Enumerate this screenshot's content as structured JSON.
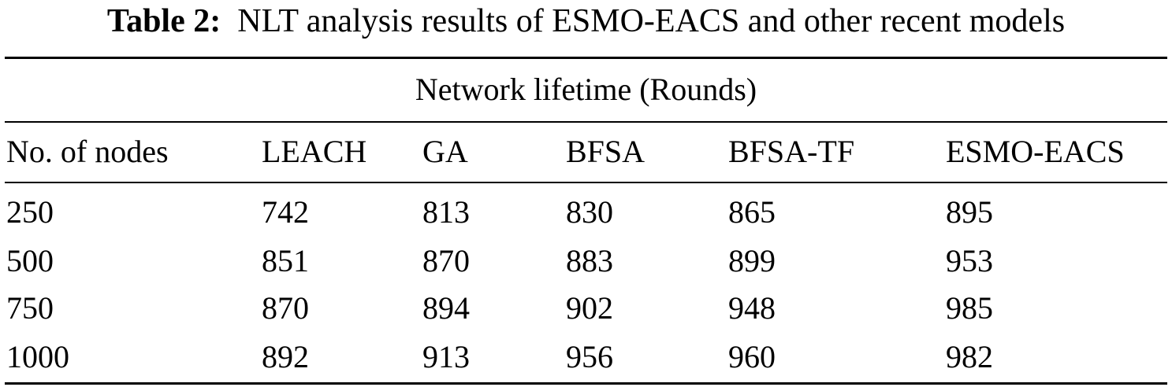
{
  "caption": {
    "label": "Table 2:",
    "text": "NLT analysis results of ESMO-EACS and other recent models"
  },
  "table": {
    "group_header": "Network lifetime (Rounds)",
    "columns": [
      "No. of nodes",
      "LEACH",
      "GA",
      "BFSA",
      "BFSA-TF",
      "ESMO-EACS"
    ],
    "rows": [
      [
        "250",
        "742",
        "813",
        "830",
        "865",
        "895"
      ],
      [
        "500",
        "851",
        "870",
        "883",
        "899",
        "953"
      ],
      [
        "750",
        "870",
        "894",
        "902",
        "948",
        "985"
      ],
      [
        "1000",
        "892",
        "913",
        "956",
        "960",
        "982"
      ]
    ]
  }
}
